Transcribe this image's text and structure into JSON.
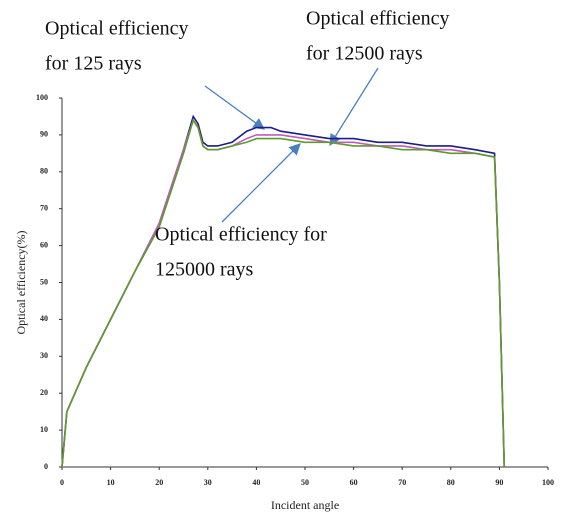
{
  "chart_data": {
    "type": "line",
    "xlabel": "Incident angle",
    "ylabel": "Optical efficiency(%)",
    "x": [
      0,
      1,
      5,
      10,
      15,
      20,
      25,
      27,
      28,
      29,
      30,
      32,
      35,
      38,
      40,
      43,
      45,
      50,
      55,
      60,
      65,
      70,
      75,
      80,
      85,
      89,
      90,
      91
    ],
    "series": [
      {
        "name": "Optical efficiency for 125 rays",
        "color": "#1c1c8a",
        "values": [
          0,
          15,
          27,
          40,
          53,
          66,
          86,
          95,
          93,
          88,
          87,
          87,
          88,
          91,
          92,
          92,
          91,
          90,
          89,
          89,
          88,
          88,
          87,
          87,
          86,
          85,
          50,
          0
        ]
      },
      {
        "name": "Optical efficiency for 12500 rays",
        "color": "#c05cc0",
        "values": [
          0,
          15,
          27,
          40,
          53,
          66,
          86,
          94,
          92,
          87,
          86,
          86,
          87,
          89,
          90,
          90,
          90,
          89,
          88,
          88,
          87,
          87,
          86,
          86,
          85,
          84,
          50,
          0
        ]
      },
      {
        "name": "Optical efficiency for 125000 rays",
        "color": "#5f9a2a",
        "values": [
          0,
          15,
          27,
          40,
          53,
          65,
          85,
          94,
          92,
          87,
          86,
          86,
          87,
          88,
          89,
          89,
          89,
          88,
          88,
          87,
          87,
          86,
          86,
          85,
          85,
          84,
          50,
          0
        ]
      }
    ],
    "annotations": [
      {
        "lines": [
          "Optical efficiency",
          "for 125 rays"
        ]
      },
      {
        "lines": [
          "Optical efficiency",
          "for 12500 rays"
        ]
      },
      {
        "lines": [
          "Optical efficiency for",
          "125000 rays"
        ]
      }
    ],
    "xlim": [
      0,
      100
    ],
    "xticks": [
      0,
      10,
      20,
      30,
      40,
      50,
      60,
      70,
      80,
      90,
      100
    ],
    "ylim": [
      0,
      100
    ],
    "yticks": [
      0,
      10,
      20,
      30,
      40,
      50,
      60,
      70,
      80,
      90,
      100
    ]
  }
}
